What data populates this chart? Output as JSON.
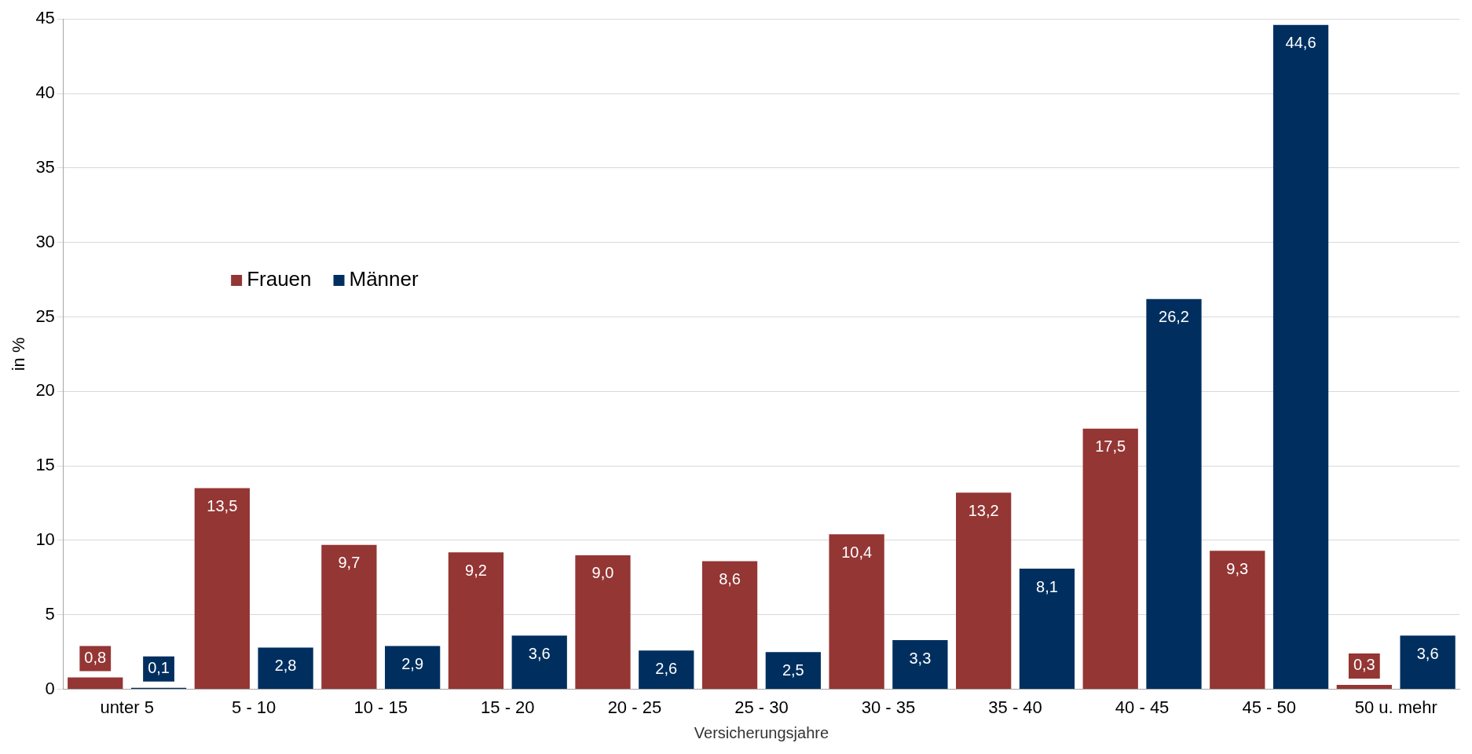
{
  "chart_data": {
    "type": "bar",
    "xlabel": "Versicherungsjahre",
    "ylabel": "in %",
    "categories": [
      "unter 5",
      "5 - 10",
      "10 - 15",
      "15 - 20",
      "20 - 25",
      "25 - 30",
      "30 - 35",
      "35 - 40",
      "40 - 45",
      "45 - 50",
      "50 u. mehr"
    ],
    "series": [
      {
        "name": "Frauen",
        "color": "#943634",
        "values": [
          0.8,
          13.5,
          9.7,
          9.2,
          9.0,
          8.6,
          10.4,
          13.2,
          17.5,
          9.3,
          0.3
        ],
        "value_labels": [
          "0,8",
          "13,5",
          "9,7",
          "9,2",
          "9,0",
          "8,6",
          "10,4",
          "13,2",
          "17,5",
          "9,3",
          "0,3"
        ]
      },
      {
        "name": "Männer",
        "color": "#002f5f",
        "values": [
          0.1,
          2.8,
          2.9,
          3.6,
          2.6,
          2.5,
          3.3,
          8.1,
          26.2,
          44.6,
          3.6
        ],
        "value_labels": [
          "0,1",
          "2,8",
          "2,9",
          "3,6",
          "2,6",
          "2,5",
          "3,3",
          "8,1",
          "26,2",
          "44,6",
          "3,6"
        ]
      }
    ],
    "ylim": [
      0,
      45
    ],
    "yticks": [
      0,
      5,
      10,
      15,
      20,
      25,
      30,
      35,
      40,
      45
    ],
    "grid": "y",
    "legend": "left"
  }
}
